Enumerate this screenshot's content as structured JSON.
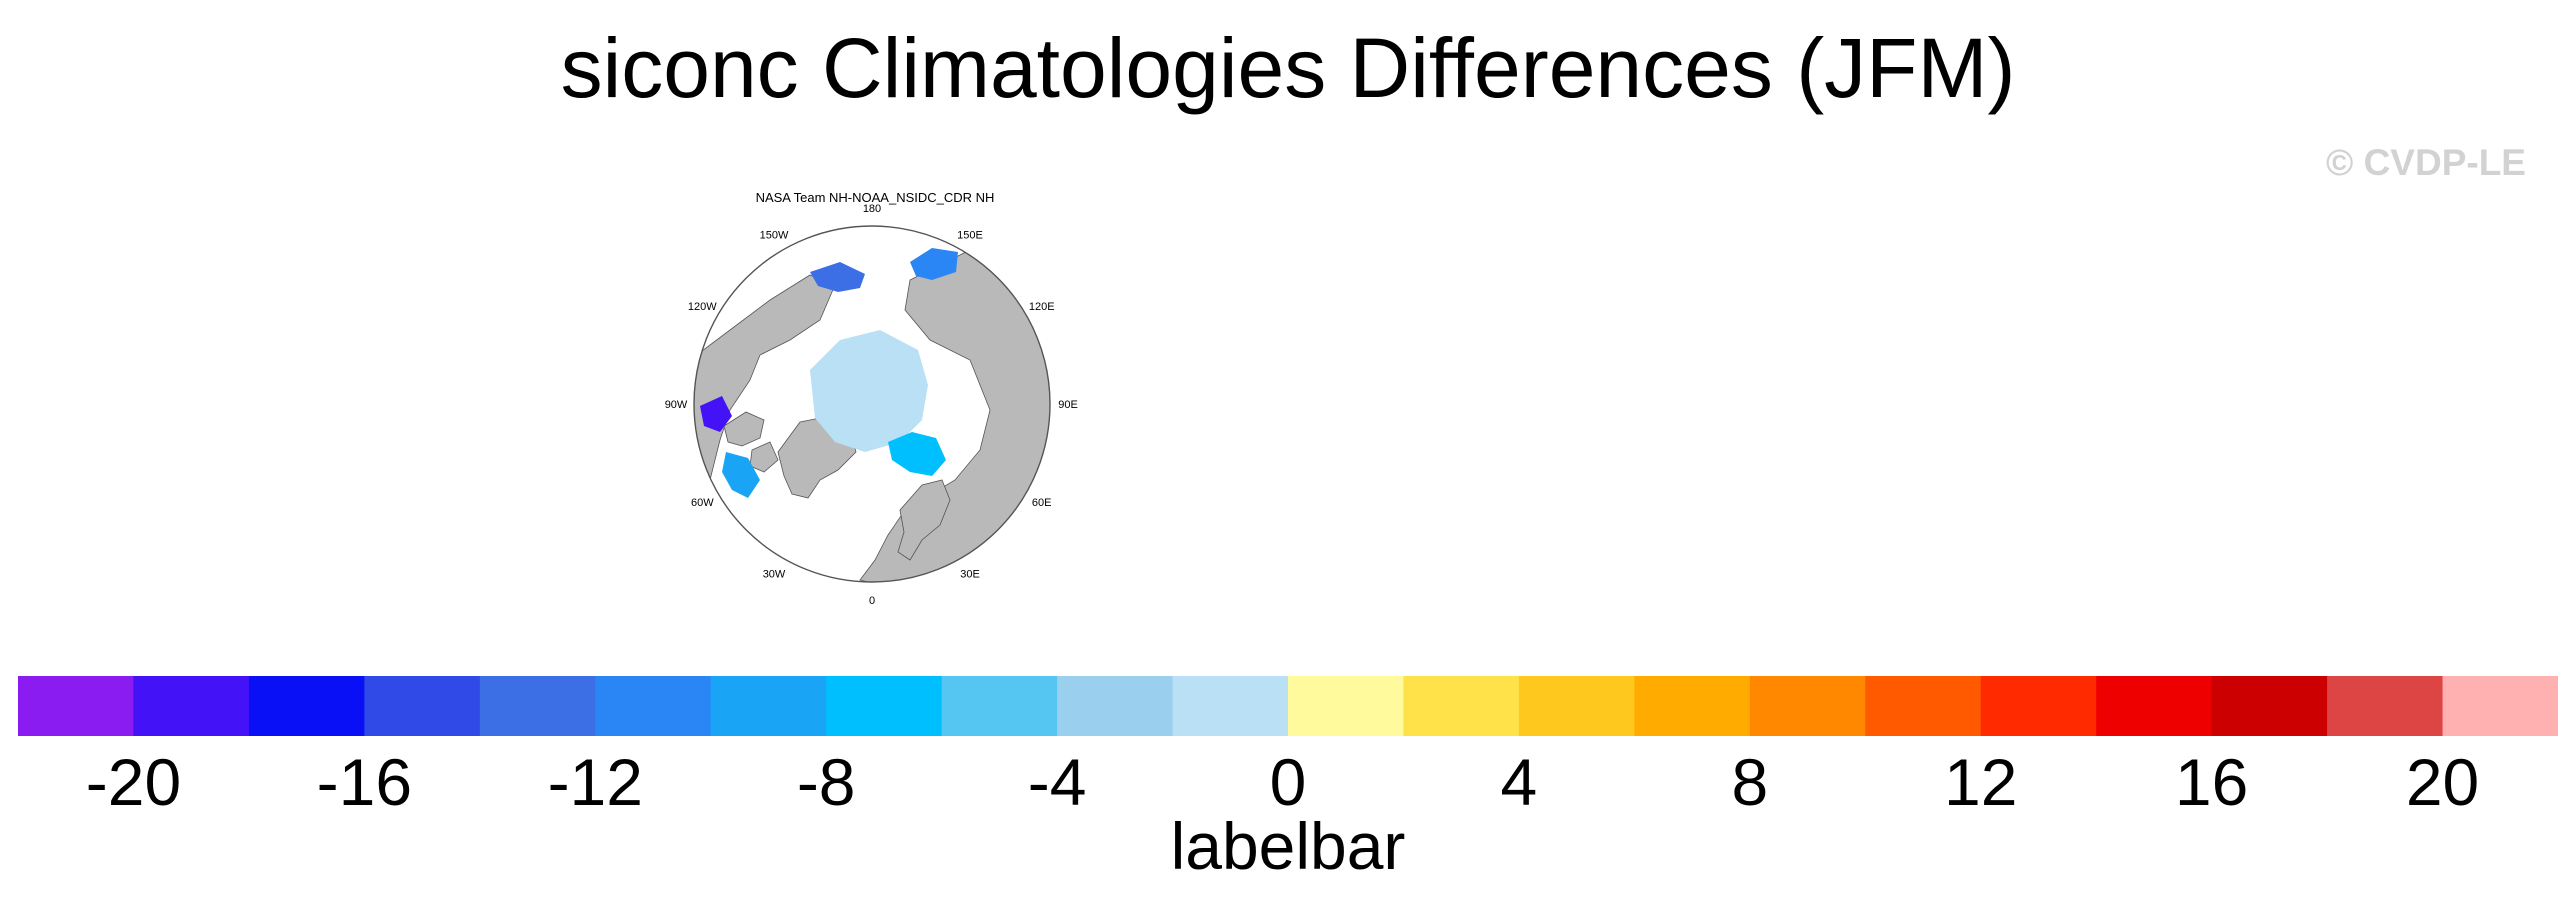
{
  "figure": {
    "title": "siconc Climatologies Differences (JFM)",
    "watermark": "© CVDP-LE"
  },
  "panel": {
    "title": "NASA Team NH-NOAA_NSIDC_CDR NH",
    "lon_labels": [
      "180",
      "150E",
      "120E",
      "90E",
      "60E",
      "30E",
      "0",
      "30W",
      "60W",
      "90W",
      "120W",
      "150W"
    ],
    "land_color": "#b9b9b9",
    "ocean_color": "#ffffff"
  },
  "colorbar": {
    "title": "labelbar",
    "labels": [
      "-20",
      "-16",
      "-12",
      "-8",
      "-4",
      "0",
      "4",
      "8",
      "12",
      "16",
      "20"
    ],
    "colors": [
      "#8a1cf2",
      "#4412f7",
      "#0a10f5",
      "#2f4ae6",
      "#3c6fe6",
      "#2a86f5",
      "#1aa4f5",
      "#00bfff",
      "#55c5f2",
      "#9ad0ee",
      "#b9e0f4",
      "#fffa9b",
      "#ffe24a",
      "#ffc81e",
      "#ffab00",
      "#ff8800",
      "#ff5a00",
      "#ff2a00",
      "#ee0000",
      "#cc0000",
      "#dd4444",
      "#ffb0b0"
    ]
  }
}
